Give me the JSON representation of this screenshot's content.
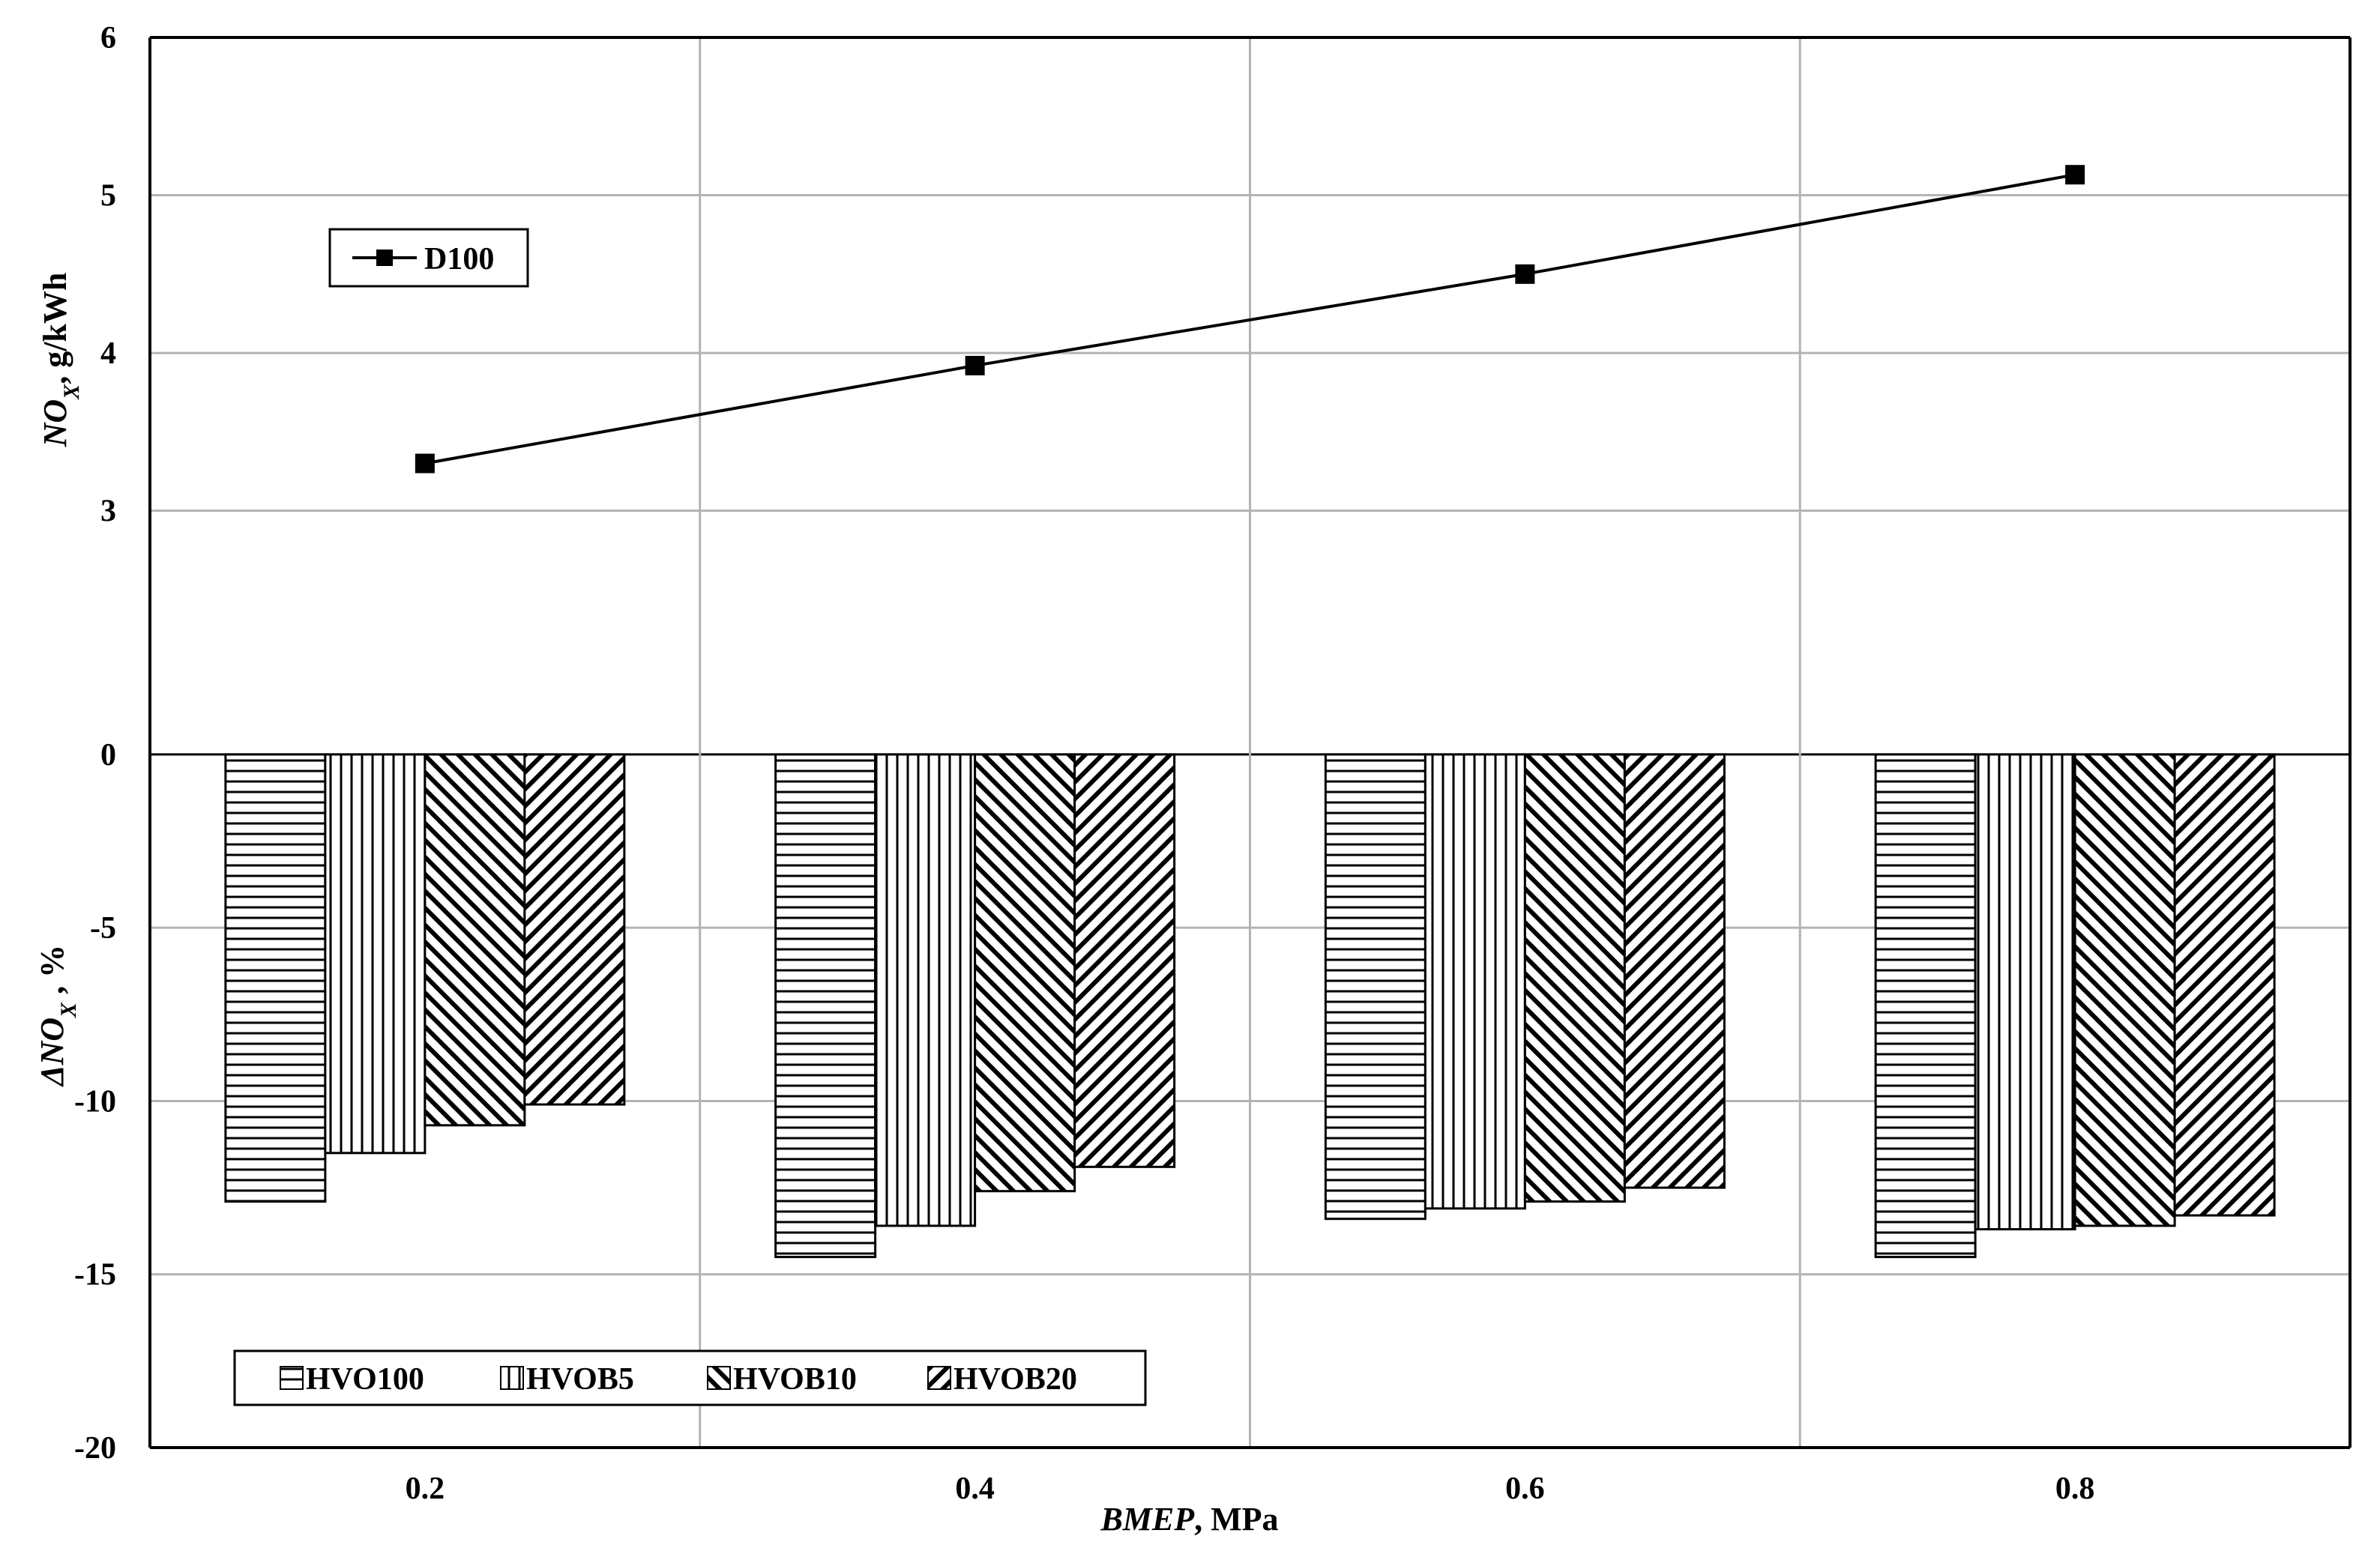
{
  "chart_data": [
    {
      "type": "line",
      "ylabel_main": "NO",
      "ylabel_sub": "X",
      "ylabel_rest": ", g/kWh",
      "ylim": [
        2.4,
        6
      ],
      "yticks": [
        "3",
        "4",
        "5",
        "6"
      ],
      "grid": true,
      "legend_position": "top-left",
      "series": [
        {
          "name": "D100",
          "x": [
            0.2,
            0.4,
            0.6,
            0.8
          ],
          "values": [
            3.3,
            3.92,
            4.5,
            5.13
          ]
        }
      ]
    },
    {
      "type": "bar",
      "ylabel_prefix": "ΔNO",
      "ylabel_sub": "X",
      "ylabel_rest": " , %",
      "ylim": [
        -20,
        4.3
      ],
      "yticks": [
        "0",
        "-5",
        "-10",
        "-15",
        "-20"
      ],
      "grid": true,
      "legend_position": "bottom-left",
      "categories": [
        "0.2",
        "0.4",
        "0.6",
        "0.8"
      ],
      "xlabel_main": "BMEP",
      "xlabel_rest": ", MPa",
      "series": [
        {
          "name": "HVO100",
          "values": [
            -12.9,
            -14.5,
            -13.4,
            -14.5
          ]
        },
        {
          "name": "HVOB5",
          "values": [
            -11.5,
            -13.6,
            -13.1,
            -13.7
          ]
        },
        {
          "name": "HVOB10",
          "values": [
            -10.7,
            -12.6,
            -12.9,
            -13.6
          ]
        },
        {
          "name": "HVOB20",
          "values": [
            -10.1,
            -11.9,
            -12.5,
            -13.3
          ]
        }
      ]
    }
  ],
  "patterns": [
    "horizontal",
    "vertical",
    "diag-down",
    "diag-up"
  ],
  "colors": {
    "line": "#000000",
    "grid": "#b3b3b3",
    "bar_fill": "#ffffff"
  }
}
